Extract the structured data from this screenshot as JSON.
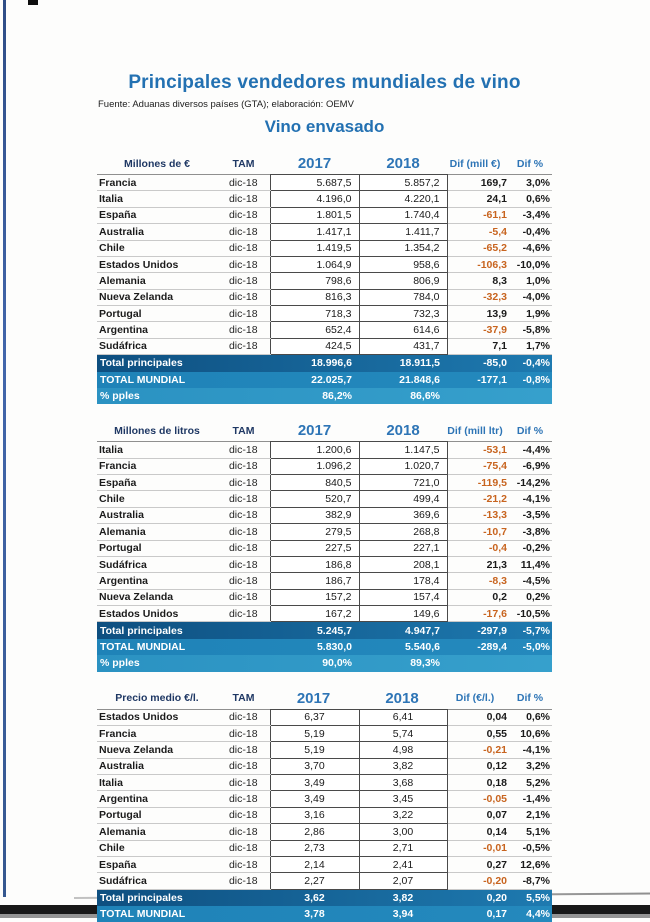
{
  "page": {
    "title": "Principales vendedores mundiales de vino",
    "source": "Fuente: Aduanas diversos países (GTA); elaboración: OEMV",
    "subtitle": "Vino envasado"
  },
  "colors": {
    "accent_blue": "#2371B2",
    "year_header_blue": "#2E75B6",
    "header_navy": "#1F3864",
    "negative_value_orange": "#C8641F",
    "total_row_dark": "#0E4F80",
    "total_row_light": "#2B92C2"
  },
  "tables": [
    {
      "unit_label": "Millones de €",
      "tam_label": "TAM",
      "col_2017": "2017",
      "col_2018": "2018",
      "dif_label": "Dif (mill €)",
      "dif_pct_label": "Dif %",
      "rows": [
        {
          "name": "Francia",
          "tam": "dic-18",
          "y2017": "5.687,5",
          "y2018": "5.857,2",
          "dif": "169,7",
          "dif_pct": "3,0%"
        },
        {
          "name": "Italia",
          "tam": "dic-18",
          "y2017": "4.196,0",
          "y2018": "4.220,1",
          "dif": "24,1",
          "dif_pct": "0,6%"
        },
        {
          "name": "España",
          "tam": "dic-18",
          "y2017": "1.801,5",
          "y2018": "1.740,4",
          "dif": "-61,1",
          "dif_pct": "-3,4%"
        },
        {
          "name": "Australia",
          "tam": "dic-18",
          "y2017": "1.417,1",
          "y2018": "1.411,7",
          "dif": "-5,4",
          "dif_pct": "-0,4%"
        },
        {
          "name": "Chile",
          "tam": "dic-18",
          "y2017": "1.419,5",
          "y2018": "1.354,2",
          "dif": "-65,2",
          "dif_pct": "-4,6%"
        },
        {
          "name": "Estados Unidos",
          "tam": "dic-18",
          "y2017": "1.064,9",
          "y2018": "958,6",
          "dif": "-106,3",
          "dif_pct": "-10,0%"
        },
        {
          "name": "Alemania",
          "tam": "dic-18",
          "y2017": "798,6",
          "y2018": "806,9",
          "dif": "8,3",
          "dif_pct": "1,0%"
        },
        {
          "name": "Nueva Zelanda",
          "tam": "dic-18",
          "y2017": "816,3",
          "y2018": "784,0",
          "dif": "-32,3",
          "dif_pct": "-4,0%"
        },
        {
          "name": "Portugal",
          "tam": "dic-18",
          "y2017": "718,3",
          "y2018": "732,3",
          "dif": "13,9",
          "dif_pct": "1,9%"
        },
        {
          "name": "Argentina",
          "tam": "dic-18",
          "y2017": "652,4",
          "y2018": "614,6",
          "dif": "-37,9",
          "dif_pct": "-5,8%"
        },
        {
          "name": "Sudáfrica",
          "tam": "dic-18",
          "y2017": "424,5",
          "y2018": "431,7",
          "dif": "7,1",
          "dif_pct": "1,7%"
        }
      ],
      "totals": [
        {
          "label": "Total principales",
          "y2017": "18.996,6",
          "y2018": "18.911,5",
          "dif": "-85,0",
          "dif_pct": "-0,4%"
        },
        {
          "label": "TOTAL MUNDIAL",
          "y2017": "22.025,7",
          "y2018": "21.848,6",
          "dif": "-177,1",
          "dif_pct": "-0,8%"
        },
        {
          "label": "% pples",
          "y2017": "86,2%",
          "y2018": "86,6%",
          "dif": "",
          "dif_pct": ""
        }
      ]
    },
    {
      "unit_label": "Millones de litros",
      "tam_label": "TAM",
      "col_2017": "2017",
      "col_2018": "2018",
      "dif_label": "Dif (mill ltr)",
      "dif_pct_label": "Dif %",
      "rows": [
        {
          "name": "Italia",
          "tam": "dic-18",
          "y2017": "1.200,6",
          "y2018": "1.147,5",
          "dif": "-53,1",
          "dif_pct": "-4,4%"
        },
        {
          "name": "Francia",
          "tam": "dic-18",
          "y2017": "1.096,2",
          "y2018": "1.020,7",
          "dif": "-75,4",
          "dif_pct": "-6,9%"
        },
        {
          "name": "España",
          "tam": "dic-18",
          "y2017": "840,5",
          "y2018": "721,0",
          "dif": "-119,5",
          "dif_pct": "-14,2%"
        },
        {
          "name": "Chile",
          "tam": "dic-18",
          "y2017": "520,7",
          "y2018": "499,4",
          "dif": "-21,2",
          "dif_pct": "-4,1%"
        },
        {
          "name": "Australia",
          "tam": "dic-18",
          "y2017": "382,9",
          "y2018": "369,6",
          "dif": "-13,3",
          "dif_pct": "-3,5%"
        },
        {
          "name": "Alemania",
          "tam": "dic-18",
          "y2017": "279,5",
          "y2018": "268,8",
          "dif": "-10,7",
          "dif_pct": "-3,8%"
        },
        {
          "name": "Portugal",
          "tam": "dic-18",
          "y2017": "227,5",
          "y2018": "227,1",
          "dif": "-0,4",
          "dif_pct": "-0,2%"
        },
        {
          "name": "Sudáfrica",
          "tam": "dic-18",
          "y2017": "186,8",
          "y2018": "208,1",
          "dif": "21,3",
          "dif_pct": "11,4%"
        },
        {
          "name": "Argentina",
          "tam": "dic-18",
          "y2017": "186,7",
          "y2018": "178,4",
          "dif": "-8,3",
          "dif_pct": "-4,5%"
        },
        {
          "name": "Nueva Zelanda",
          "tam": "dic-18",
          "y2017": "157,2",
          "y2018": "157,4",
          "dif": "0,2",
          "dif_pct": "0,2%"
        },
        {
          "name": "Estados Unidos",
          "tam": "dic-18",
          "y2017": "167,2",
          "y2018": "149,6",
          "dif": "-17,6",
          "dif_pct": "-10,5%"
        }
      ],
      "totals": [
        {
          "label": "Total principales",
          "y2017": "5.245,7",
          "y2018": "4.947,7",
          "dif": "-297,9",
          "dif_pct": "-5,7%"
        },
        {
          "label": "TOTAL MUNDIAL",
          "y2017": "5.830,0",
          "y2018": "5.540,6",
          "dif": "-289,4",
          "dif_pct": "-5,0%"
        },
        {
          "label": "% pples",
          "y2017": "90,0%",
          "y2018": "89,3%",
          "dif": "",
          "dif_pct": ""
        }
      ]
    },
    {
      "unit_label": "Precio medio €/l.",
      "tam_label": "TAM",
      "col_2017": "2017",
      "col_2018": "2018",
      "dif_label": "Dif (€/l.)",
      "dif_pct_label": "Dif %",
      "rows": [
        {
          "name": "Estados Unidos",
          "tam": "dic-18",
          "y2017": "6,37",
          "y2018": "6,41",
          "dif": "0,04",
          "dif_pct": "0,6%"
        },
        {
          "name": "Francia",
          "tam": "dic-18",
          "y2017": "5,19",
          "y2018": "5,74",
          "dif": "0,55",
          "dif_pct": "10,6%"
        },
        {
          "name": "Nueva Zelanda",
          "tam": "dic-18",
          "y2017": "5,19",
          "y2018": "4,98",
          "dif": "-0,21",
          "dif_pct": "-4,1%"
        },
        {
          "name": "Australia",
          "tam": "dic-18",
          "y2017": "3,70",
          "y2018": "3,82",
          "dif": "0,12",
          "dif_pct": "3,2%"
        },
        {
          "name": "Italia",
          "tam": "dic-18",
          "y2017": "3,49",
          "y2018": "3,68",
          "dif": "0,18",
          "dif_pct": "5,2%"
        },
        {
          "name": "Argentina",
          "tam": "dic-18",
          "y2017": "3,49",
          "y2018": "3,45",
          "dif": "-0,05",
          "dif_pct": "-1,4%"
        },
        {
          "name": "Portugal",
          "tam": "dic-18",
          "y2017": "3,16",
          "y2018": "3,22",
          "dif": "0,07",
          "dif_pct": "2,1%"
        },
        {
          "name": "Alemania",
          "tam": "dic-18",
          "y2017": "2,86",
          "y2018": "3,00",
          "dif": "0,14",
          "dif_pct": "5,1%"
        },
        {
          "name": "Chile",
          "tam": "dic-18",
          "y2017": "2,73",
          "y2018": "2,71",
          "dif": "-0,01",
          "dif_pct": "-0,5%"
        },
        {
          "name": "España",
          "tam": "dic-18",
          "y2017": "2,14",
          "y2018": "2,41",
          "dif": "0,27",
          "dif_pct": "12,6%"
        },
        {
          "name": "Sudáfrica",
          "tam": "dic-18",
          "y2017": "2,27",
          "y2018": "2,07",
          "dif": "-0,20",
          "dif_pct": "-8,7%"
        }
      ],
      "totals": [
        {
          "label": "Total principales",
          "y2017": "3,62",
          "y2018": "3,82",
          "dif": "0,20",
          "dif_pct": "5,5%"
        },
        {
          "label": "TOTAL MUNDIAL",
          "y2017": "3,78",
          "y2018": "3,94",
          "dif": "0,17",
          "dif_pct": "4,4%"
        }
      ]
    }
  ]
}
